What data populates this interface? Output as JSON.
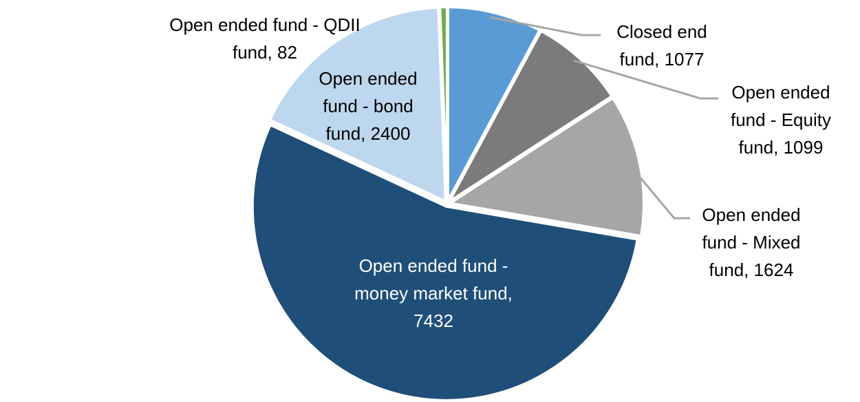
{
  "chart_data": {
    "type": "pie",
    "title": "",
    "legend": "none",
    "grid": false,
    "start_angle_deg": 0,
    "direction": "clockwise",
    "total": 13714,
    "background_color": "#FFFFFF",
    "slice_border_color": "#FFFFFF",
    "leader_line_color": "#A6A6A6",
    "label_text_color": "#000000",
    "inner_label_text_color": "#FFFFFF",
    "slices": [
      {
        "name": "Closed end fund",
        "value": 1077,
        "color": "#5B9BD5",
        "label_lines": [
          "Closed end",
          "fund, 1077"
        ]
      },
      {
        "name": "Open ended fund - Equity fund",
        "value": 1099,
        "color": "#7B7B7B",
        "label_lines": [
          "Open ended",
          "fund - Equity",
          "fund, 1099"
        ]
      },
      {
        "name": "Open ended fund - Mixed fund",
        "value": 1624,
        "color": "#A6A6A6",
        "label_lines": [
          "Open ended",
          "fund - Mixed",
          "fund, 1624"
        ]
      },
      {
        "name": "Open ended fund - money market fund",
        "value": 7432,
        "color": "#1F4E79",
        "label_lines": [
          "Open ended fund -",
          "money market fund,",
          "7432"
        ]
      },
      {
        "name": "Open ended fund - bond fund",
        "value": 2400,
        "color": "#BDD7EE",
        "label_lines": [
          "Open ended",
          "fund - bond",
          "fund, 2400"
        ]
      },
      {
        "name": "Open ended fund - QDII fund",
        "value": 82,
        "color": "#70AD47",
        "label_lines": [
          "Open ended fund - QDII",
          "fund, 82"
        ]
      }
    ]
  }
}
